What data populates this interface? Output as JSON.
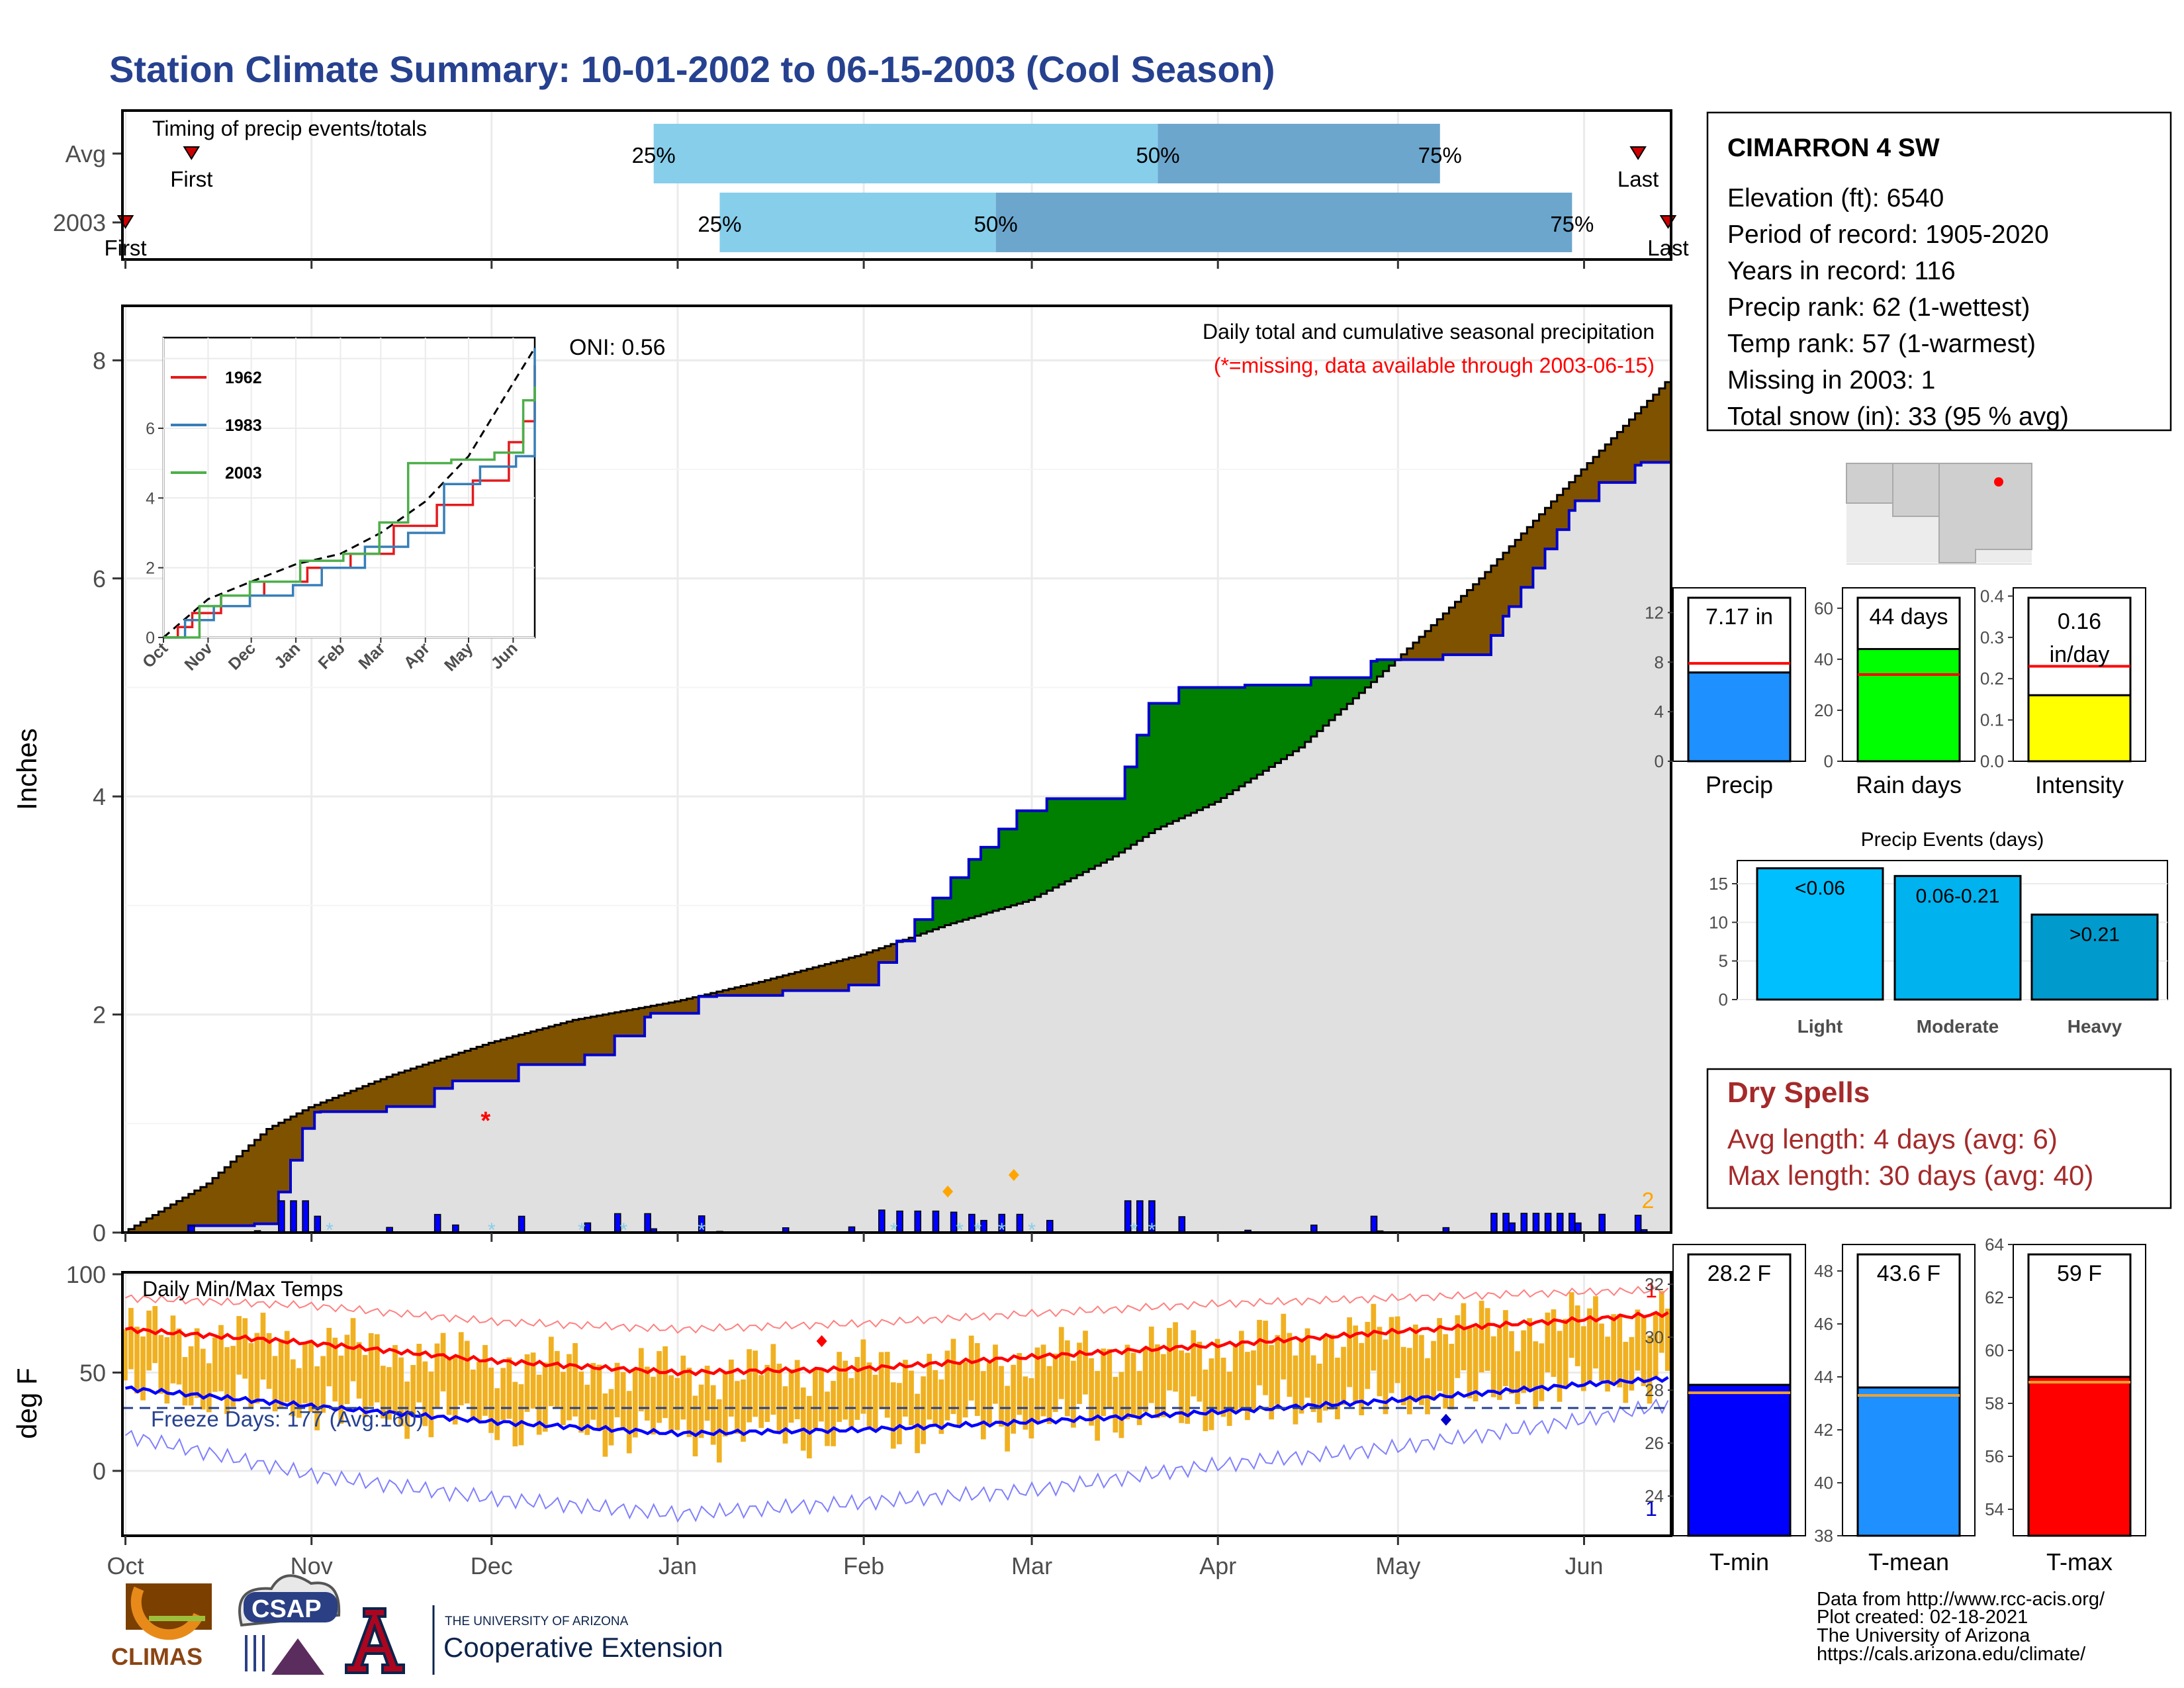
{
  "title": "Station Climate Summary: 10-01-2002 to 06-15-2003 (Cool Season)",
  "months": [
    "Oct",
    "Nov",
    "Dec",
    "Jan",
    "Feb",
    "Mar",
    "Apr",
    "May",
    "Jun"
  ],
  "timing": {
    "label": "Timing of precip events/totals",
    "rows": [
      {
        "name": "Avg",
        "first_label": "First",
        "last_label": "Last",
        "p25": "25%",
        "p50": "50%",
        "p75": "75%"
      },
      {
        "name": "2003",
        "first_label": "First",
        "last_label": "Last",
        "p25": "25%",
        "p50": "50%",
        "p75": "75%"
      }
    ],
    "colors": {
      "light": "#87ceeb",
      "mid": "#6ca6cd",
      "marker": "#cc0000"
    }
  },
  "precip": {
    "ylabel": "Inches",
    "yticks": [
      "0",
      "2",
      "4",
      "6",
      "8"
    ],
    "oni": "ONI: 0.56",
    "desc": "Daily total and cumulative seasonal precipitation",
    "missing_note": "(*=missing, data available through 2003-06-15)",
    "missing_marker": "*",
    "count_label": "2",
    "colors": {
      "above": "#008000",
      "below": "#7f5200",
      "area": "#e0e0e0",
      "line2003": "#0000cc",
      "daily": "#0000ff"
    }
  },
  "inset": {
    "yticks": [
      "0",
      "2",
      "4",
      "6"
    ],
    "xticks": [
      "Oct",
      "Nov",
      "Dec",
      "Jan",
      "Feb",
      "Mar",
      "Apr",
      "May",
      "Jun"
    ],
    "legend": [
      {
        "name": "1962",
        "color": "#e41a1c"
      },
      {
        "name": "1983",
        "color": "#377eb8"
      },
      {
        "name": "2003",
        "color": "#4daf4a"
      }
    ]
  },
  "temps": {
    "ylabel": "deg F",
    "label": "Daily Min/Max Temps",
    "freeze": "Freeze Days: 177 (Avg:160)",
    "yticks": [
      "0",
      "50",
      "100"
    ],
    "record_max_count": "1",
    "record_min_count": "1",
    "freezing_line_f": 32,
    "colors": {
      "bars": "#f0b020",
      "avg_max": "#ff0000",
      "avg_min": "#0000ff",
      "rec_max": "#ff8080",
      "rec_min": "#8080ff"
    }
  },
  "station": {
    "name": "CIMARRON 4 SW",
    "lines": [
      "Elevation (ft): 6540",
      "Period of record: 1905-2020",
      "Years in record: 116",
      "Precip rank: 62 (1-wettest)",
      "Temp rank: 57 (1-warmest)",
      "Missing in 2003: 1",
      "Total snow (in): 33 (95 % avg)"
    ]
  },
  "stat_bars": [
    {
      "label": "Precip",
      "value_text": "7.17 in",
      "value": 7.17,
      "avg": 7.9,
      "ymax": 14,
      "yticks": [
        "0",
        "4",
        "8",
        "12"
      ],
      "color": "#1e90ff"
    },
    {
      "label": "Rain days",
      "value_text": "44 days",
      "value": 44,
      "avg": 34,
      "ymax": 68,
      "yticks": [
        "0",
        "20",
        "40",
        "60"
      ],
      "color": "#00ff00"
    },
    {
      "label": "Intensity",
      "value_text_1": "0.16",
      "value_text_2": "in/day",
      "value": 0.16,
      "avg": 0.23,
      "ymax": 0.42,
      "yticks": [
        "0.0",
        "0.1",
        "0.2",
        "0.3",
        "0.4"
      ],
      "color": "#ffff00"
    }
  ],
  "events": {
    "title": "Precip Events (days)",
    "yticks": [
      "0",
      "5",
      "10",
      "15"
    ],
    "bars": [
      {
        "name": "Light",
        "range": "<0.06",
        "value": 17,
        "color": "#00bfff"
      },
      {
        "name": "Moderate",
        "range": "0.06-0.21",
        "value": 16,
        "color": "#00b2ee"
      },
      {
        "name": "Heavy",
        "range": ">0.21",
        "value": 11,
        "color": "#009acd"
      }
    ]
  },
  "dry_spells": {
    "title": "Dry Spells",
    "avg": "Avg length: 4 days (avg: 6)",
    "max": "Max length: 30 days (avg: 40)"
  },
  "temp_bars": [
    {
      "label": "T-min",
      "value_text": "28.2 F",
      "value": 28.2,
      "avg": 27.9,
      "ymin": 22.5,
      "ymax": 33.5,
      "yticks": [
        "24",
        "26",
        "28",
        "30",
        "32"
      ],
      "color": "#0000ff"
    },
    {
      "label": "T-mean",
      "value_text": "43.6 F",
      "value": 43.6,
      "avg": 43.3,
      "ymin": 38,
      "ymax": 49,
      "yticks": [
        "38",
        "40",
        "42",
        "44",
        "46",
        "48"
      ],
      "color": "#1e90ff"
    },
    {
      "label": "T-max",
      "value_text": "59 F",
      "value": 59,
      "avg": 58.8,
      "ymin": 53,
      "ymax": 64,
      "yticks": [
        "54",
        "56",
        "58",
        "60",
        "62",
        "64"
      ],
      "color": "#ff0000"
    }
  ],
  "footer": {
    "lines": [
      "Data from http://www.rcc-acis.org/",
      "Plot created: 02-18-2021",
      "The University of Arizona",
      "https://cals.arizona.edu/climate/"
    ]
  },
  "logos": {
    "climas": "CLIMAS",
    "csap": "CSAP",
    "ua_line1": "THE UNIVERSITY OF ARIZONA",
    "ua_line2": "Cooperative Extension"
  },
  "chart_data": [
    {
      "type": "area",
      "title": "Daily total and cumulative seasonal precipitation",
      "ylabel": "Inches",
      "ylim": [
        0,
        8.5
      ],
      "x_dates": [
        "2002-10-01",
        "2002-10-15",
        "2002-10-25",
        "2002-11-01",
        "2002-11-15",
        "2002-12-01",
        "2002-12-15",
        "2003-01-01",
        "2003-01-15",
        "2003-02-01",
        "2003-02-15",
        "2003-03-01",
        "2003-03-15",
        "2003-03-22",
        "2003-04-01",
        "2003-04-15",
        "2003-05-01",
        "2003-05-15",
        "2003-06-01",
        "2003-06-15"
      ],
      "series": [
        {
          "name": "Avg",
          "values": [
            0.0,
            0.45,
            0.95,
            1.15,
            1.45,
            1.74,
            1.95,
            2.12,
            2.3,
            2.55,
            2.82,
            3.05,
            3.45,
            3.7,
            3.95,
            4.45,
            5.25,
            6.0,
            7.0,
            7.8
          ]
        },
        {
          "name": "2003",
          "values": [
            0.0,
            0.08,
            0.08,
            1.1,
            1.16,
            1.53,
            1.56,
            2.15,
            2.2,
            2.28,
            3.2,
            3.98,
            3.98,
            5.0,
            5.0,
            5.06,
            5.3,
            5.3,
            6.8,
            7.17
          ]
        }
      ]
    },
    {
      "type": "line",
      "title": "Daily Min/Max Temps",
      "ylabel": "deg F",
      "ylim": [
        -33,
        101
      ],
      "x_dates": [
        "2002-10-01",
        "2002-11-01",
        "2002-12-01",
        "2003-01-01",
        "2003-02-01",
        "2003-03-01",
        "2003-04-01",
        "2003-05-01",
        "2003-06-01",
        "2003-06-15"
      ],
      "series": [
        {
          "name": "Avg max",
          "values": [
            72,
            65,
            56,
            50,
            52,
            58,
            64,
            71,
            77,
            80
          ]
        },
        {
          "name": "Avg min",
          "values": [
            42,
            33,
            25,
            19,
            21,
            25,
            30,
            36,
            44,
            47
          ]
        },
        {
          "name": "Record max",
          "values": [
            88,
            84,
            76,
            72,
            75,
            80,
            85,
            88,
            91,
            92
          ]
        },
        {
          "name": "Record min",
          "values": [
            18,
            -2,
            -14,
            -22,
            -16,
            -10,
            3,
            12,
            26,
            34
          ]
        }
      ]
    }
  ]
}
